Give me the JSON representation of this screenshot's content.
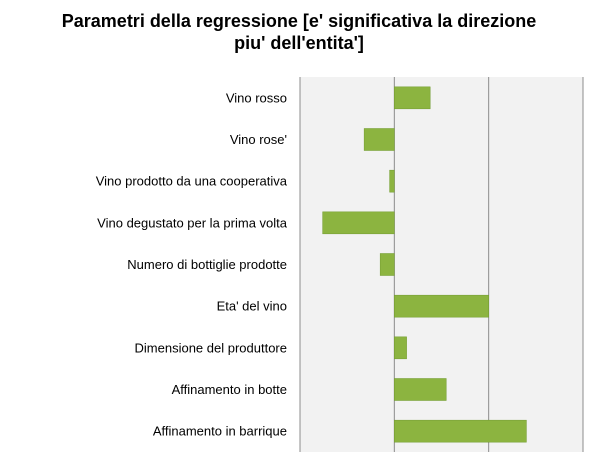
{
  "chart_data": {
    "type": "bar",
    "orientation": "horizontal",
    "title": "Parametri della regressione [e' significativa la direzione piu' dell'entita']",
    "title_lines": [
      "Parametri della regressione [e' significativa la direzione",
      "piu' dell'entita']"
    ],
    "categories": [
      "Vino rosso",
      "Vino rose'",
      "Vino prodotto da una cooperativa",
      "Vino degustato per la prima volta",
      "Numero di bottiglie prodotte",
      "Eta' del vino",
      "Dimensione del produttore",
      "Affinamento in botte",
      "Affinamento in barrique"
    ],
    "values": [
      0.38,
      -0.32,
      -0.05,
      -0.76,
      -0.15,
      1.0,
      0.13,
      0.55,
      1.4
    ],
    "xlim": [
      -1,
      2
    ],
    "grid": "vertical",
    "tick_labels_shown": false,
    "legend": "none",
    "bar_color": "#8cb440",
    "bar_edge_color": "#6f9a2a",
    "plot_background": "#f2f2f2"
  }
}
